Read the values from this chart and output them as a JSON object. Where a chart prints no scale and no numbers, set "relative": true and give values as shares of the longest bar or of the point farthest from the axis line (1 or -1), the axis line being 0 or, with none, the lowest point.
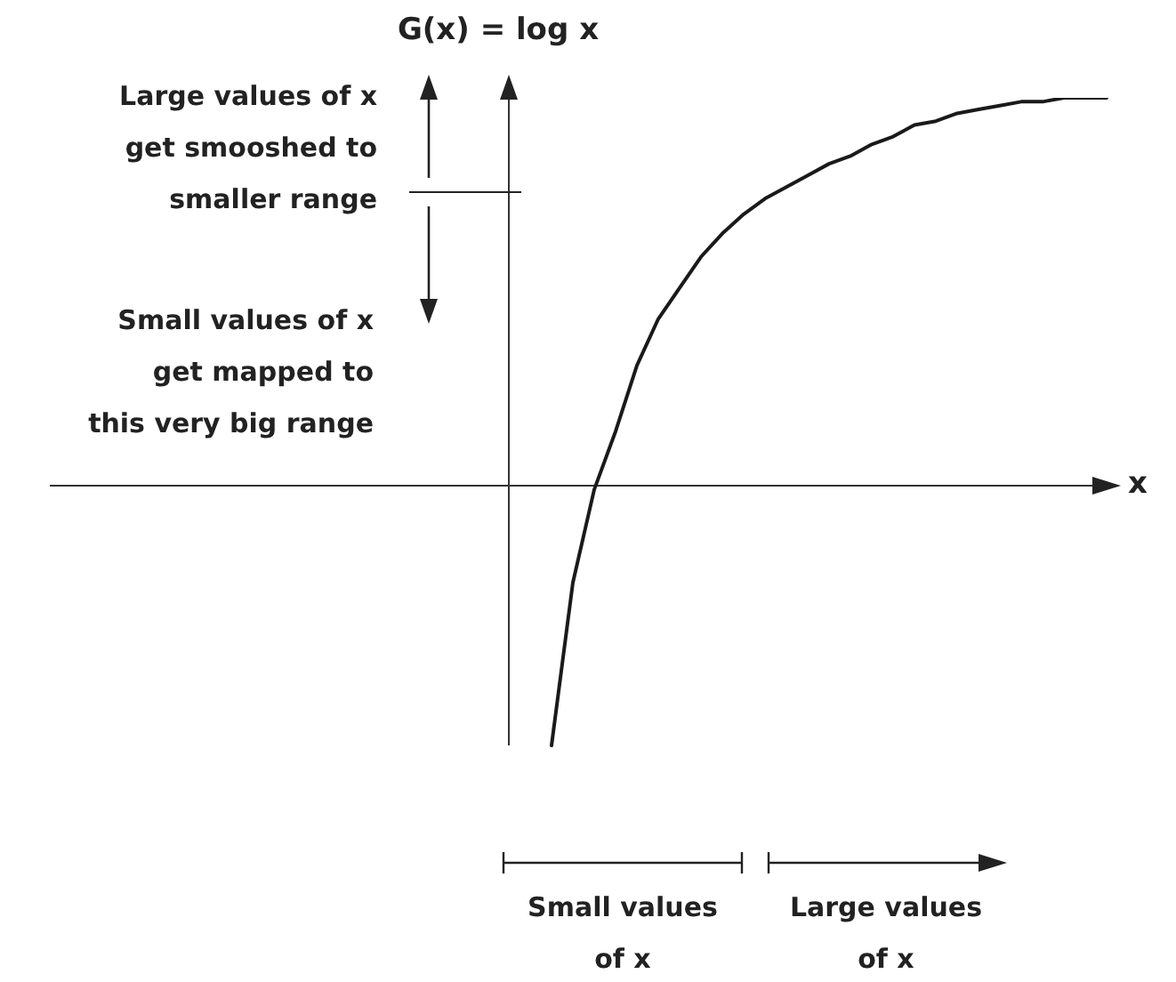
{
  "chart_data": {
    "type": "line",
    "relative": true,
    "title": "G(x) = log x",
    "xlabel": "x",
    "marker": "none",
    "line_style": "solid",
    "categories": [
      null,
      null,
      null,
      null,
      null,
      null,
      null,
      null,
      null,
      null,
      null,
      null,
      null,
      null,
      null,
      null,
      null,
      null,
      null,
      null,
      null,
      null,
      null,
      null,
      null,
      null,
      null,
      null,
      null
    ],
    "series": [
      {
        "color": "#1a1a1a",
        "values": [
          null,
          null,
          -0.67,
          -0.25,
          -0.01,
          0.14,
          0.31,
          0.43,
          0.51,
          0.59,
          0.65,
          0.7,
          0.74,
          0.77,
          0.8,
          0.83,
          0.85,
          0.88,
          0.9,
          0.93,
          0.94,
          0.96,
          0.97,
          0.98,
          0.99,
          0.99,
          1,
          1,
          1
        ]
      }
    ],
    "annotations": [
      "Large values of x\nget smooshed to\nsmaller range",
      "Small values of x\nget mapped to\nthis very big range",
      "Small values\nof x",
      "Large values\nof x"
    ]
  }
}
